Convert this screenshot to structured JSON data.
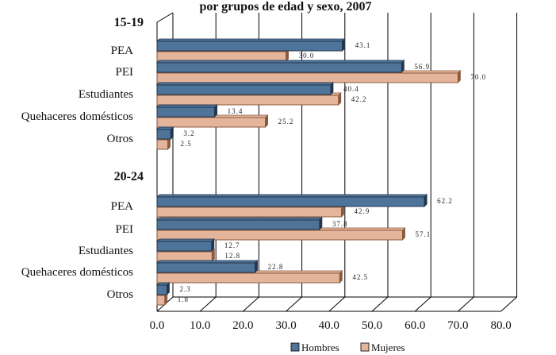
{
  "chart_data": {
    "type": "bar",
    "orientation": "horizontal",
    "title": "por grupos de edad y sexo, 2007",
    "xlim": [
      0,
      80
    ],
    "x_ticks": [
      "0.0",
      "10.0",
      "20.0",
      "30.0",
      "40.0",
      "50.0",
      "60.0",
      "70.0",
      "80.0"
    ],
    "grid": true,
    "legend_position": "bottom",
    "series": [
      {
        "name": "Hombres",
        "color": "#4F7499"
      },
      {
        "name": "Mujeres",
        "color": "#E4B49B"
      }
    ],
    "groups": [
      {
        "label": "15-19",
        "categories": [
          {
            "label": "PEA",
            "values": [
              43.1,
              30.0
            ],
            "value_labels": [
              "43.1",
              "30.0"
            ]
          },
          {
            "label": "PEI",
            "values": [
              56.9,
              70.0
            ],
            "value_labels": [
              "56.9",
              "70.0"
            ]
          },
          {
            "label": "Estudiantes",
            "values": [
              40.4,
              42.2
            ],
            "value_labels": [
              "40.4",
              "42.2"
            ]
          },
          {
            "label": "Quehaceres domésticos",
            "values": [
              13.4,
              25.2
            ],
            "value_labels": [
              "13.4",
              "25.2"
            ]
          },
          {
            "label": "Otros",
            "values": [
              3.2,
              2.5
            ],
            "value_labels": [
              "3.2",
              "2.5"
            ]
          }
        ]
      },
      {
        "label": "20-24",
        "categories": [
          {
            "label": "PEA",
            "values": [
              62.2,
              42.9
            ],
            "value_labels": [
              "62.2",
              "42.9"
            ]
          },
          {
            "label": "PEI",
            "values": [
              37.8,
              57.1
            ],
            "value_labels": [
              "37.8",
              "57.1"
            ]
          },
          {
            "label": "Estudiantes",
            "values": [
              12.7,
              12.8
            ],
            "value_labels": [
              "12.7",
              "12.8"
            ]
          },
          {
            "label": "Quehaceres domésticos",
            "values": [
              22.8,
              42.5
            ],
            "value_labels": [
              "22.8",
              "42.5"
            ]
          },
          {
            "label": "Otros",
            "values": [
              2.3,
              1.8
            ],
            "value_labels": [
              "2.3",
              "1.8"
            ]
          }
        ]
      }
    ]
  }
}
